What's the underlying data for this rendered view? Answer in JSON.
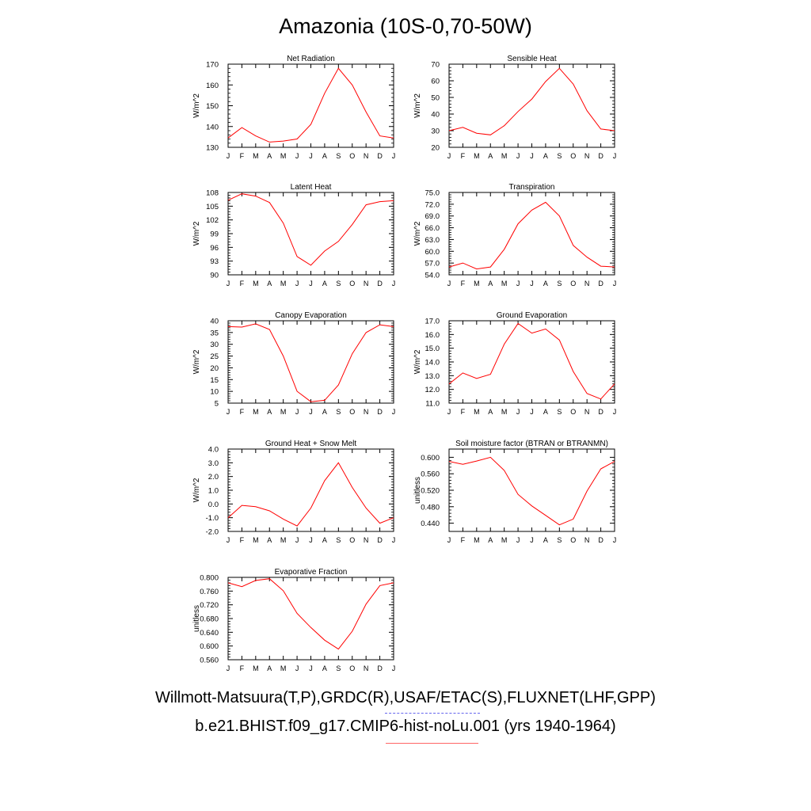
{
  "title": "Amazonia (10S-0,70-50W)",
  "legend": {
    "obs_label": "Willmott-Matsuura(T,P),GRDC(R),USAF/ETAC(S),FLUXNET(LHF,GPP)",
    "model_label": "b.e21.BHIST.f09_g17.CMIP6-hist-noLu.001 (yrs 1940-1964)",
    "obs_color": "#6666ee",
    "model_color": "#ff0000"
  },
  "chart_data": [
    {
      "type": "line",
      "title": "Net Radiation",
      "ylabel": "W/m^2",
      "categories": [
        "J",
        "F",
        "M",
        "A",
        "M",
        "J",
        "J",
        "A",
        "S",
        "O",
        "N",
        "D",
        "J"
      ],
      "ylim": [
        130,
        170
      ],
      "yticks": [
        "130",
        "140",
        "150",
        "160",
        "170"
      ],
      "values": [
        134.5,
        139.5,
        135.5,
        132.5,
        133,
        134,
        141,
        156,
        168,
        160,
        147,
        135.5,
        134.5
      ]
    },
    {
      "type": "line",
      "title": "Sensible Heat",
      "ylabel": "W/m^2",
      "categories": [
        "J",
        "F",
        "M",
        "A",
        "M",
        "J",
        "J",
        "A",
        "S",
        "O",
        "N",
        "D",
        "J"
      ],
      "ylim": [
        20,
        70
      ],
      "yticks": [
        "20",
        "30",
        "40",
        "50",
        "60",
        "70"
      ],
      "values": [
        30,
        32,
        28.5,
        27.5,
        33,
        41.5,
        49,
        59.5,
        67.5,
        58,
        42,
        31,
        30
      ]
    },
    {
      "type": "line",
      "title": "Latent Heat",
      "ylabel": "W/m^2",
      "categories": [
        "J",
        "F",
        "M",
        "A",
        "M",
        "J",
        "J",
        "A",
        "S",
        "O",
        "N",
        "D",
        "J"
      ],
      "ylim": [
        90,
        108
      ],
      "yticks": [
        "90",
        "93",
        "96",
        "99",
        "102",
        "105",
        "108"
      ],
      "values": [
        106.3,
        107.7,
        107.2,
        105.8,
        101.3,
        94,
        92.1,
        95.2,
        97.3,
        101,
        105.3,
        106,
        106.2
      ]
    },
    {
      "type": "line",
      "title": "Transpiration",
      "ylabel": "W/m^2",
      "categories": [
        "J",
        "F",
        "M",
        "A",
        "M",
        "J",
        "J",
        "A",
        "S",
        "O",
        "N",
        "D",
        "J"
      ],
      "ylim": [
        54,
        75
      ],
      "yticks": [
        "54.0",
        "57.0",
        "60.0",
        "63.0",
        "66.0",
        "69.0",
        "72.0",
        "75.0"
      ],
      "values": [
        56,
        57,
        55.5,
        56,
        60.5,
        67,
        70.5,
        72.5,
        69,
        61.5,
        58.5,
        56.2,
        56
      ]
    },
    {
      "type": "line",
      "title": "Canopy Evaporation",
      "ylabel": "W/m^2",
      "categories": [
        "J",
        "F",
        "M",
        "A",
        "M",
        "J",
        "J",
        "A",
        "S",
        "O",
        "N",
        "D",
        "J"
      ],
      "ylim": [
        5,
        40
      ],
      "yticks": [
        "5",
        "10",
        "15",
        "20",
        "25",
        "30",
        "35",
        "40"
      ],
      "values": [
        37.5,
        37.3,
        38.7,
        36.3,
        25,
        10,
        5.6,
        6.2,
        12.7,
        26,
        35,
        38.3,
        37.5
      ]
    },
    {
      "type": "line",
      "title": "Ground Evaporation",
      "ylabel": "W/m^2",
      "categories": [
        "J",
        "F",
        "M",
        "A",
        "M",
        "J",
        "J",
        "A",
        "S",
        "O",
        "N",
        "D",
        "J"
      ],
      "ylim": [
        11,
        17
      ],
      "yticks": [
        "11.0",
        "12.0",
        "13.0",
        "14.0",
        "15.0",
        "16.0",
        "17.0"
      ],
      "values": [
        12.4,
        13.2,
        12.8,
        13.1,
        15.3,
        16.8,
        16.1,
        16.4,
        15.6,
        13.3,
        11.7,
        11.3,
        12.4
      ]
    },
    {
      "type": "line",
      "title": "Ground Heat + Snow Melt",
      "ylabel": "W/m^2",
      "categories": [
        "J",
        "F",
        "M",
        "A",
        "M",
        "J",
        "J",
        "A",
        "S",
        "O",
        "N",
        "D",
        "J"
      ],
      "ylim": [
        -2,
        4
      ],
      "yticks": [
        "-2.0",
        "-1.0",
        "0.0",
        "1.0",
        "2.0",
        "3.0",
        "4.0"
      ],
      "values": [
        -1.0,
        -0.1,
        -0.2,
        -0.5,
        -1.1,
        -1.6,
        -0.3,
        1.7,
        3.0,
        1.2,
        -0.3,
        -1.4,
        -1.0
      ]
    },
    {
      "type": "line",
      "title": "Soil moisture factor (BTRAN or BTRANMN)",
      "ylabel": "unitless",
      "categories": [
        "J",
        "F",
        "M",
        "A",
        "M",
        "J",
        "J",
        "A",
        "S",
        "O",
        "N",
        "D",
        "J"
      ],
      "ylim": [
        0.42,
        0.62
      ],
      "yticks": [
        "0.440",
        "0.480",
        "0.520",
        "0.560",
        "0.600"
      ],
      "values": [
        0.59,
        0.583,
        0.591,
        0.6,
        0.568,
        0.51,
        0.482,
        0.459,
        0.436,
        0.45,
        0.518,
        0.572,
        0.59
      ]
    },
    {
      "type": "line",
      "title": "Evaporative Fraction",
      "ylabel": "unitless",
      "categories": [
        "J",
        "F",
        "M",
        "A",
        "M",
        "J",
        "J",
        "A",
        "S",
        "O",
        "N",
        "D",
        "J"
      ],
      "ylim": [
        0.56,
        0.8
      ],
      "yticks": [
        "0.560",
        "0.600",
        "0.640",
        "0.680",
        "0.720",
        "0.760",
        "0.800"
      ],
      "values": [
        0.784,
        0.773,
        0.791,
        0.796,
        0.761,
        0.695,
        0.654,
        0.617,
        0.591,
        0.643,
        0.722,
        0.776,
        0.784
      ]
    }
  ]
}
